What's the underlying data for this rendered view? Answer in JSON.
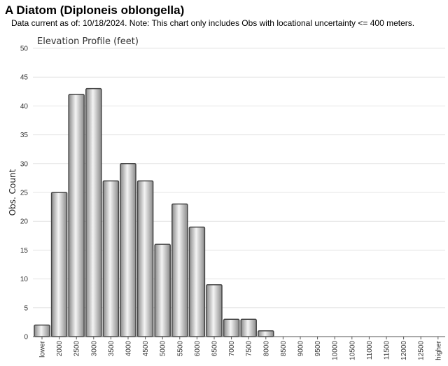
{
  "header": {
    "title": "A Diatom   (Diploneis oblongella)",
    "subtitle": "Data current as of: 10/18/2024.    Note: This chart only includes Obs with locational uncertainty <= 400 meters."
  },
  "chart_data": {
    "type": "bar",
    "title": "Elevation Profile (feet)",
    "xlabel": "",
    "ylabel": "Obs. Count",
    "ylim": [
      0,
      50
    ],
    "yticks": [
      0,
      5,
      10,
      15,
      20,
      25,
      30,
      35,
      40,
      45,
      50
    ],
    "grid": true,
    "categories": [
      "lower",
      "2000",
      "2500",
      "3000",
      "3500",
      "4000",
      "4500",
      "5000",
      "5500",
      "6000",
      "6500",
      "7000",
      "7500",
      "8000",
      "8500",
      "9000",
      "9500",
      "10000",
      "10500",
      "11000",
      "11500",
      "12000",
      "12500",
      "higher"
    ],
    "values": [
      2,
      25,
      42,
      43,
      27,
      30,
      27,
      16,
      23,
      19,
      9,
      3,
      3,
      1,
      0,
      0,
      0,
      0,
      0,
      0,
      0,
      0,
      0,
      0
    ],
    "colors": {
      "bar_light": "#f2f2f2",
      "bar_dark": "#8a8a8a",
      "bar_stroke": "#444444",
      "grid": "#e4e4e4",
      "axis": "#555555"
    }
  }
}
